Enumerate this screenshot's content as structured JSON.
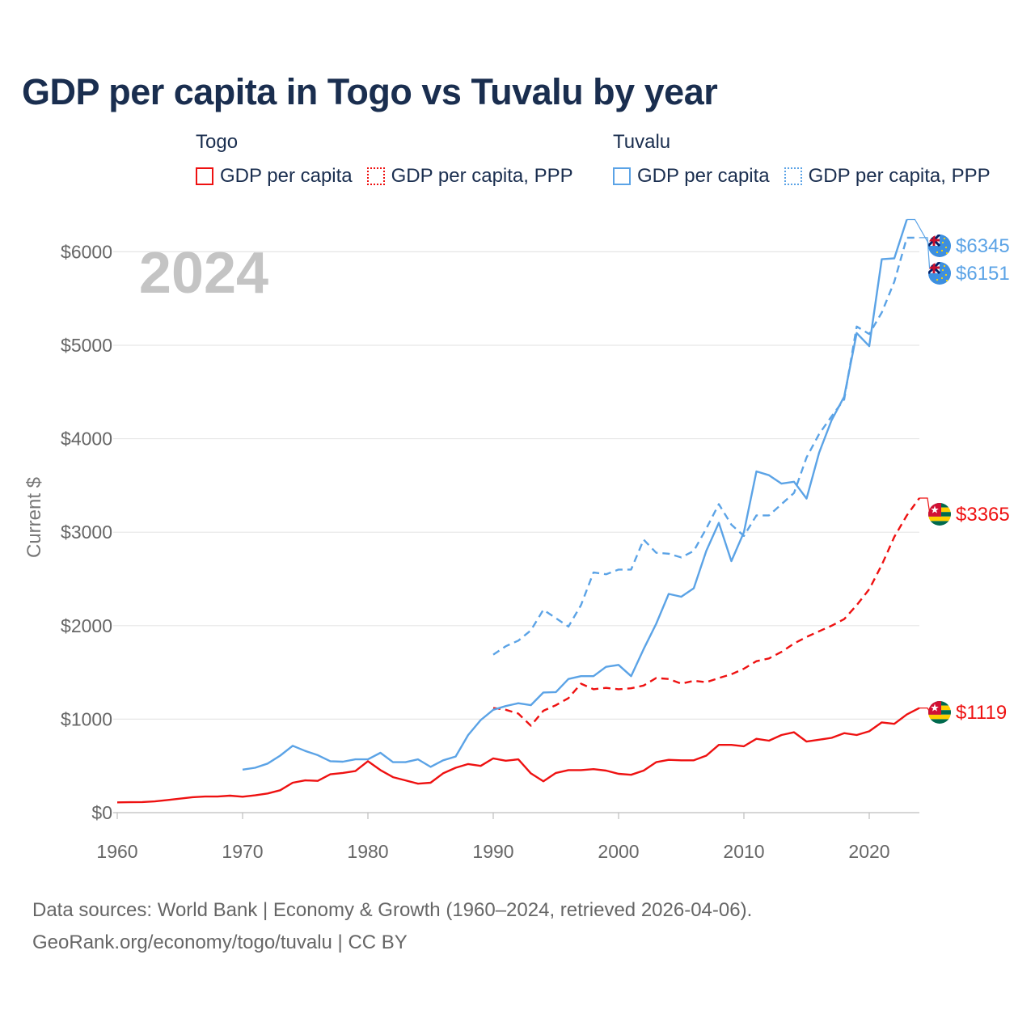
{
  "title": "GDP per capita in Togo vs Tuvalu by year",
  "legend": {
    "groups": [
      {
        "name": "Togo",
        "color": "#ee1111",
        "items": [
          {
            "label": "GDP per capita",
            "style": "solid"
          },
          {
            "label": "GDP per capita, PPP",
            "style": "dotted"
          }
        ]
      },
      {
        "name": "Tuvalu",
        "color": "#5ba3e6",
        "items": [
          {
            "label": "GDP per capita",
            "style": "solid"
          },
          {
            "label": "GDP per capita, PPP",
            "style": "dotted"
          }
        ]
      }
    ]
  },
  "year_label": "2024",
  "source": {
    "line1": "Data sources: World Bank | Economy & Growth (1960–2024, retrieved 2026-04-06).",
    "line2": "GeoRank.org/economy/togo/tuvalu | CC BY"
  },
  "chart_data": {
    "type": "line",
    "title": "GDP per capita in Togo vs Tuvalu by year",
    "xlabel": "",
    "ylabel": "Current $",
    "xlim": [
      1960,
      2024
    ],
    "ylim": [
      0,
      6500
    ],
    "grid": true,
    "x_ticks": [
      1960,
      1970,
      1980,
      1990,
      2000,
      2010,
      2020
    ],
    "x_tick_labels": [
      "1960",
      "1970",
      "1980",
      "1990",
      "2000",
      "2010",
      "2020"
    ],
    "y_ticks": [
      0,
      1000,
      2000,
      3000,
      4000,
      5000,
      6000
    ],
    "y_tick_labels": [
      "$0",
      "$1000",
      "$2000",
      "$3000",
      "$4000",
      "$5000",
      "$6000"
    ],
    "series": [
      {
        "name": "Togo GDP per capita",
        "country": "Togo",
        "color": "#ee1111",
        "dash": "solid",
        "end_label": "$1119",
        "x": [
          1960,
          1961,
          1962,
          1963,
          1964,
          1965,
          1966,
          1967,
          1968,
          1969,
          1970,
          1971,
          1972,
          1973,
          1974,
          1975,
          1976,
          1977,
          1978,
          1979,
          1980,
          1981,
          1982,
          1983,
          1984,
          1985,
          1986,
          1987,
          1988,
          1989,
          1990,
          1991,
          1992,
          1993,
          1994,
          1995,
          1996,
          1997,
          1998,
          1999,
          2000,
          2001,
          2002,
          2003,
          2004,
          2005,
          2006,
          2007,
          2008,
          2009,
          2010,
          2011,
          2012,
          2013,
          2014,
          2015,
          2016,
          2017,
          2018,
          2019,
          2020,
          2021,
          2022,
          2023,
          2024
        ],
        "values": [
          110,
          112,
          113,
          120,
          135,
          150,
          165,
          172,
          172,
          182,
          170,
          185,
          205,
          240,
          320,
          345,
          340,
          410,
          425,
          445,
          550,
          455,
          380,
          345,
          310,
          320,
          420,
          480,
          520,
          500,
          580,
          555,
          570,
          420,
          335,
          425,
          455,
          455,
          465,
          450,
          415,
          405,
          450,
          540,
          565,
          560,
          560,
          610,
          725,
          725,
          710,
          790,
          770,
          830,
          860,
          760,
          780,
          800,
          850,
          830,
          870,
          965,
          950,
          1050,
          1119
        ]
      },
      {
        "name": "Togo GDP per capita, PPP",
        "country": "Togo",
        "color": "#ee1111",
        "dash": "dashed",
        "end_label": "$3365",
        "x": [
          1990,
          1991,
          1992,
          1993,
          1994,
          1995,
          1996,
          1997,
          1998,
          1999,
          2000,
          2001,
          2002,
          2003,
          2004,
          2005,
          2006,
          2007,
          2008,
          2009,
          2010,
          2011,
          2012,
          2013,
          2014,
          2015,
          2016,
          2017,
          2018,
          2019,
          2020,
          2021,
          2022,
          2023,
          2024
        ],
        "values": [
          1120,
          1100,
          1060,
          930,
          1090,
          1150,
          1225,
          1380,
          1320,
          1335,
          1320,
          1330,
          1360,
          1440,
          1430,
          1380,
          1410,
          1395,
          1440,
          1480,
          1540,
          1620,
          1650,
          1720,
          1810,
          1880,
          1940,
          2000,
          2070,
          2220,
          2390,
          2650,
          2950,
          3180,
          3365
        ]
      },
      {
        "name": "Tuvalu GDP per capita",
        "country": "Tuvalu",
        "color": "#5ba3e6",
        "dash": "solid",
        "end_label": "$6345",
        "x": [
          1970,
          1971,
          1972,
          1973,
          1974,
          1975,
          1976,
          1977,
          1978,
          1979,
          1980,
          1981,
          1982,
          1983,
          1984,
          1985,
          1986,
          1987,
          1988,
          1989,
          1990,
          1991,
          1992,
          1993,
          1994,
          1995,
          1996,
          1997,
          1998,
          1999,
          2000,
          2001,
          2002,
          2003,
          2004,
          2005,
          2006,
          2007,
          2008,
          2009,
          2010,
          2011,
          2012,
          2013,
          2014,
          2015,
          2016,
          2017,
          2018,
          2019,
          2020,
          2021,
          2022,
          2023
        ],
        "values": [
          460,
          480,
          525,
          610,
          715,
          660,
          615,
          550,
          545,
          570,
          570,
          640,
          540,
          540,
          570,
          490,
          560,
          600,
          830,
          990,
          1100,
          1140,
          1170,
          1150,
          1285,
          1290,
          1430,
          1460,
          1460,
          1560,
          1580,
          1460,
          1750,
          2020,
          2340,
          2310,
          2400,
          2800,
          3100,
          2690,
          3000,
          3650,
          3610,
          3520,
          3540,
          3360,
          3850,
          4200,
          4450,
          5130,
          4990,
          5920,
          5930,
          6345
        ]
      },
      {
        "name": "Tuvalu GDP per capita, PPP",
        "country": "Tuvalu",
        "color": "#5ba3e6",
        "dash": "dashed",
        "end_label": "$6151",
        "x": [
          1990,
          1991,
          1992,
          1993,
          1994,
          1995,
          1996,
          1997,
          1998,
          1999,
          2000,
          2001,
          2002,
          2003,
          2004,
          2005,
          2006,
          2007,
          2008,
          2009,
          2010,
          2011,
          2012,
          2013,
          2014,
          2015,
          2016,
          2017,
          2018,
          2019,
          2020,
          2021,
          2022,
          2023,
          2024
        ],
        "values": [
          1690,
          1780,
          1840,
          1950,
          2170,
          2080,
          1990,
          2220,
          2570,
          2550,
          2600,
          2600,
          2920,
          2780,
          2770,
          2730,
          2800,
          3040,
          3300,
          3080,
          2960,
          3180,
          3180,
          3300,
          3420,
          3800,
          4050,
          4240,
          4420,
          5200,
          5120,
          5350,
          5680,
          6150,
          6151
        ]
      }
    ]
  }
}
